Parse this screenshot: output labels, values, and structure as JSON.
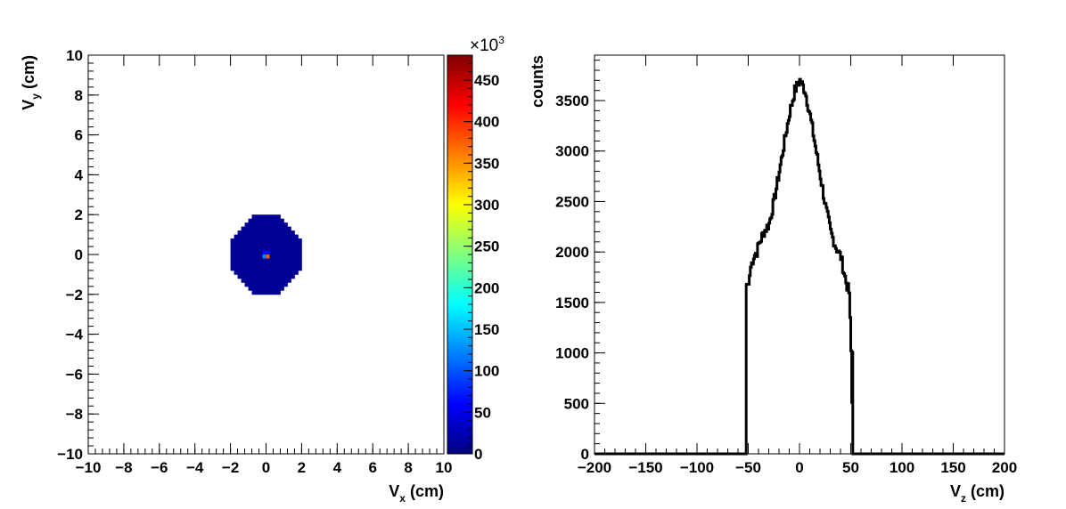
{
  "chart_data": [
    {
      "type": "heatmap",
      "xlabel": {
        "main": "V",
        "sub": "x",
        "unit": " (cm)"
      },
      "ylabel": {
        "main": "V",
        "sub": "y",
        "unit": " (cm)"
      },
      "xlim": [
        -10,
        10
      ],
      "ylim": [
        -10,
        10
      ],
      "x_ticks": [
        -10,
        -8,
        -6,
        -4,
        -2,
        0,
        2,
        4,
        6,
        8,
        10
      ],
      "y_ticks": [
        -10,
        -8,
        -6,
        -4,
        -2,
        0,
        2,
        4,
        6,
        8,
        10
      ],
      "x_tick_labels": [
        "−10",
        "−8",
        "−6",
        "−4",
        "−2",
        "0",
        "2",
        "4",
        "6",
        "8",
        "10"
      ],
      "y_tick_labels": [
        "−10",
        "−8",
        "−6",
        "−4",
        "−2",
        "0",
        "2",
        "4",
        "6",
        "8",
        "10"
      ],
      "bin_width": 0.2,
      "region": {
        "shape": "octagon-like disc",
        "center": [
          0,
          0
        ],
        "radius": 2.0,
        "background_value": 10000
      },
      "hot_bins": [
        {
          "x": 0.1,
          "y": -0.1,
          "value": 380000
        },
        {
          "x": -0.1,
          "y": -0.1,
          "value": 120000
        },
        {
          "x": 0.1,
          "y": 0.1,
          "value": 60000
        },
        {
          "x": -0.1,
          "y": 0.1,
          "value": 60000
        }
      ],
      "colorbar": {
        "range": [
          0,
          480
        ],
        "multiplier_base": "×10",
        "multiplier_exp": "3",
        "ticks": [
          0,
          50,
          100,
          150,
          200,
          250,
          300,
          350,
          400,
          450
        ],
        "tick_labels": [
          "0",
          "50",
          "100",
          "150",
          "200",
          "250",
          "300",
          "350",
          "400",
          "450"
        ],
        "palette": [
          "#00007f",
          "#0000ff",
          "#007fff",
          "#00ffff",
          "#7fff7f",
          "#ffff00",
          "#ff7f00",
          "#ff0000",
          "#7f0000"
        ]
      }
    },
    {
      "type": "line",
      "style": "histogram-step",
      "xlabel": {
        "main": "V",
        "sub": "z",
        "unit": " (cm)"
      },
      "ylabel": "counts",
      "xlim": [
        -200,
        200
      ],
      "ylim": [
        0,
        3950
      ],
      "x_ticks": [
        -200,
        -150,
        -100,
        -50,
        0,
        50,
        100,
        150,
        200
      ],
      "x_tick_labels": [
        "−200",
        "−150",
        "−100",
        "−50",
        "0",
        "50",
        "100",
        "150",
        "200"
      ],
      "y_ticks": [
        0,
        500,
        1000,
        1500,
        2000,
        2500,
        3000,
        3500
      ],
      "y_tick_labels": [
        "0",
        "500",
        "1000",
        "1500",
        "2000",
        "2500",
        "3000",
        "3500"
      ],
      "x": [
        -200,
        -52,
        -50,
        -48,
        -45,
        -42,
        -40,
        -35,
        -30,
        -25,
        -20,
        -15,
        -10,
        -5,
        0,
        5,
        10,
        15,
        20,
        25,
        30,
        35,
        40,
        45,
        48,
        50,
        52,
        200
      ],
      "y": [
        0,
        0,
        1680,
        1850,
        1960,
        2000,
        2080,
        2200,
        2280,
        2520,
        2800,
        3100,
        3380,
        3600,
        3700,
        3600,
        3350,
        3050,
        2750,
        2450,
        2200,
        2050,
        1950,
        1700,
        1600,
        1020,
        0,
        0
      ]
    }
  ]
}
